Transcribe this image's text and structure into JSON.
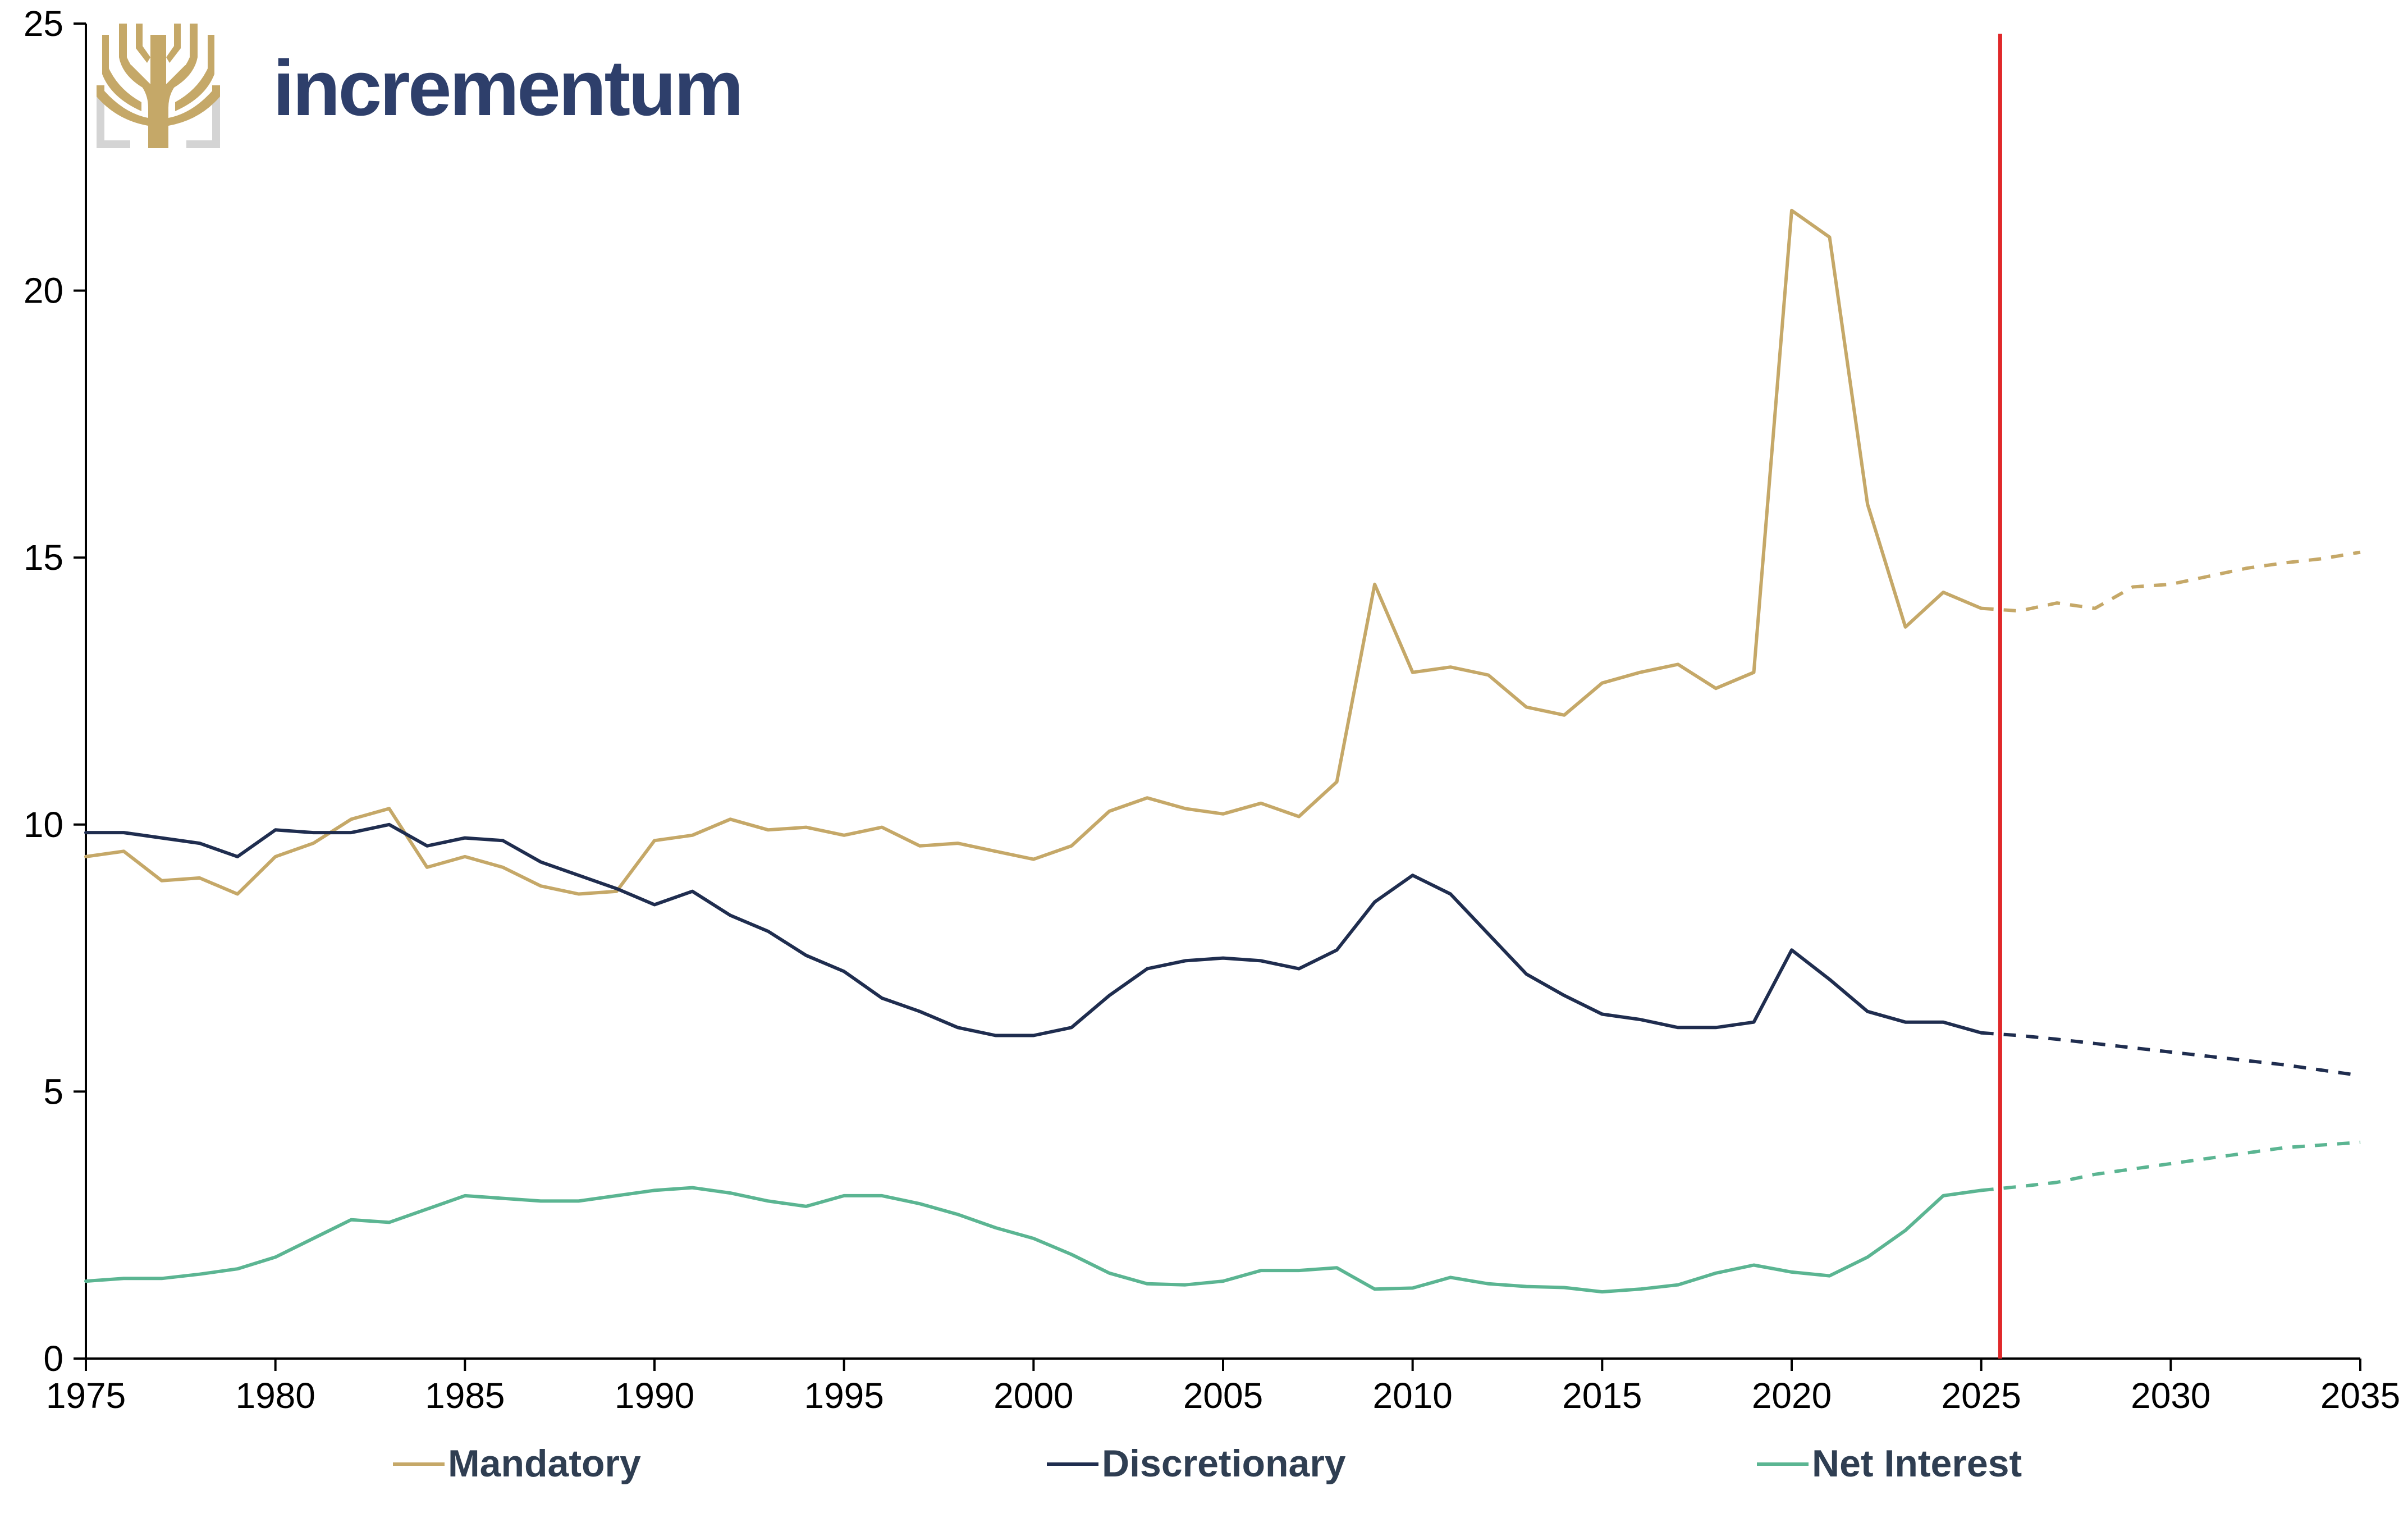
{
  "brand": {
    "name": "incrementum",
    "logo_icon": "tree-icon",
    "logo_color": "#c5a868",
    "text_color": "#2e3f6b"
  },
  "chart_data": {
    "type": "line",
    "title": "",
    "xlabel": "",
    "ylabel": "",
    "xlim": [
      1975,
      2035
    ],
    "ylim": [
      0,
      25
    ],
    "x_ticks": [
      "1975",
      "1980",
      "1985",
      "1990",
      "1995",
      "2000",
      "2005",
      "2010",
      "2015",
      "2020",
      "2025",
      "2030",
      "2035"
    ],
    "y_ticks": [
      "0",
      "5",
      "10",
      "15",
      "20",
      "25"
    ],
    "grid": false,
    "legend_position": "bottom",
    "marker_line": {
      "x": 2025.5,
      "color": "#e0282a"
    },
    "series": [
      {
        "name": "Mandatory",
        "color": "#c5a868",
        "x": [
          1975,
          1976,
          1977,
          1978,
          1979,
          1980,
          1981,
          1982,
          1983,
          1984,
          1985,
          1986,
          1987,
          1988,
          1989,
          1990,
          1991,
          1992,
          1993,
          1994,
          1995,
          1996,
          1997,
          1998,
          1999,
          2000,
          2001,
          2002,
          2003,
          2004,
          2005,
          2006,
          2007,
          2008,
          2009,
          2010,
          2011,
          2012,
          2013,
          2014,
          2015,
          2016,
          2017,
          2018,
          2019,
          2020,
          2021,
          2022,
          2023,
          2024,
          2025
        ],
        "values": [
          9.4,
          9.5,
          8.95,
          9.0,
          8.7,
          9.4,
          9.65,
          10.1,
          10.3,
          9.2,
          9.4,
          9.2,
          8.85,
          8.7,
          8.75,
          9.7,
          9.8,
          10.1,
          9.9,
          9.95,
          9.8,
          9.95,
          9.6,
          9.65,
          9.5,
          9.35,
          9.6,
          10.25,
          10.5,
          10.3,
          10.2,
          10.4,
          10.15,
          10.8,
          14.5,
          12.85,
          12.95,
          12.8,
          12.2,
          12.05,
          12.65,
          12.85,
          13.0,
          12.55,
          12.85,
          21.5,
          21.0,
          16.0,
          13.7,
          14.35,
          14.05
        ],
        "projection": {
          "x": [
            2025,
            2026,
            2027,
            2028,
            2029,
            2030,
            2031,
            2032,
            2033,
            2034,
            2035
          ],
          "values": [
            14.05,
            14.0,
            14.15,
            14.05,
            14.45,
            14.5,
            14.65,
            14.8,
            14.9,
            14.98,
            15.1
          ]
        }
      },
      {
        "name": "Discretionary",
        "color": "#1f2d4f",
        "x": [
          1975,
          1976,
          1977,
          1978,
          1979,
          1980,
          1981,
          1982,
          1983,
          1984,
          1985,
          1986,
          1987,
          1988,
          1989,
          1990,
          1991,
          1992,
          1993,
          1994,
          1995,
          1996,
          1997,
          1998,
          1999,
          2000,
          2001,
          2002,
          2003,
          2004,
          2005,
          2006,
          2007,
          2008,
          2009,
          2010,
          2011,
          2012,
          2013,
          2014,
          2015,
          2016,
          2017,
          2018,
          2019,
          2020,
          2021,
          2022,
          2023,
          2024,
          2025
        ],
        "values": [
          9.85,
          9.85,
          9.75,
          9.65,
          9.4,
          9.9,
          9.85,
          9.85,
          10.0,
          9.6,
          9.75,
          9.7,
          9.3,
          9.05,
          8.8,
          8.5,
          8.75,
          8.3,
          8.0,
          7.55,
          7.25,
          6.75,
          6.5,
          6.2,
          6.05,
          6.05,
          6.2,
          6.8,
          7.3,
          7.45,
          7.5,
          7.45,
          7.3,
          7.65,
          8.55,
          9.05,
          8.7,
          7.95,
          7.2,
          6.8,
          6.45,
          6.35,
          6.2,
          6.2,
          6.3,
          7.65,
          7.1,
          6.5,
          6.3,
          6.3,
          6.1
        ],
        "projection": {
          "x": [
            2025,
            2026,
            2027,
            2028,
            2029,
            2030,
            2031,
            2032,
            2033,
            2034,
            2035
          ],
          "values": [
            6.1,
            6.05,
            5.98,
            5.9,
            5.82,
            5.74,
            5.66,
            5.58,
            5.5,
            5.4,
            5.3
          ]
        }
      },
      {
        "name": "Net Interest",
        "color": "#5bb592",
        "x": [
          1975,
          1976,
          1977,
          1978,
          1979,
          1980,
          1981,
          1982,
          1983,
          1984,
          1985,
          1986,
          1987,
          1988,
          1989,
          1990,
          1991,
          1992,
          1993,
          1994,
          1995,
          1996,
          1997,
          1998,
          1999,
          2000,
          2001,
          2002,
          2003,
          2004,
          2005,
          2006,
          2007,
          2008,
          2009,
          2010,
          2011,
          2012,
          2013,
          2014,
          2015,
          2016,
          2017,
          2018,
          2019,
          2020,
          2021,
          2022,
          2023,
          2024,
          2025
        ],
        "values": [
          1.45,
          1.5,
          1.5,
          1.58,
          1.68,
          1.9,
          2.25,
          2.6,
          2.55,
          2.8,
          3.05,
          3.0,
          2.95,
          2.95,
          3.05,
          3.15,
          3.2,
          3.1,
          2.95,
          2.85,
          3.05,
          3.05,
          2.9,
          2.7,
          2.45,
          2.25,
          1.95,
          1.6,
          1.4,
          1.38,
          1.45,
          1.65,
          1.65,
          1.7,
          1.3,
          1.32,
          1.52,
          1.4,
          1.35,
          1.33,
          1.25,
          1.3,
          1.38,
          1.6,
          1.75,
          1.62,
          1.55,
          1.9,
          2.4,
          3.05,
          3.15
        ],
        "projection": {
          "x": [
            2025,
            2026,
            2027,
            2028,
            2029,
            2030,
            2031,
            2032,
            2033,
            2034,
            2035
          ],
          "values": [
            3.15,
            3.22,
            3.3,
            3.45,
            3.55,
            3.65,
            3.75,
            3.85,
            3.95,
            4.0,
            4.05
          ]
        }
      }
    ]
  }
}
